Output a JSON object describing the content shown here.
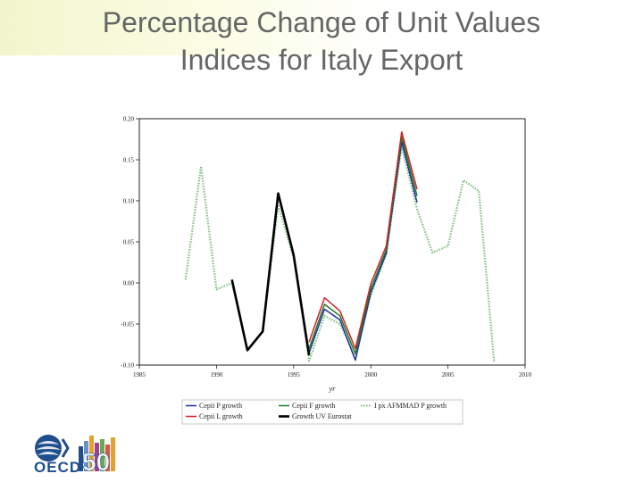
{
  "title": {
    "line1": "Percentage Change of Unit Values",
    "line2": "Indices for Italy Export"
  },
  "logo": {
    "text": "OECD",
    "anniversary": "50",
    "icon": "oecd-globe-icon",
    "colors": [
      "#1f4e8c",
      "#6b8fc7",
      "#e2a22b",
      "#9b3f8f",
      "#6aa84f",
      "#d9534f"
    ]
  },
  "chart_data": {
    "type": "line",
    "title": "",
    "xlabel": "yr",
    "ylabel": "",
    "xlim": [
      1985,
      2010
    ],
    "ylim": [
      -0.1,
      0.2
    ],
    "xticks": [
      1985,
      1990,
      1995,
      2000,
      2005,
      2010
    ],
    "yticks": [
      -0.1,
      -0.05,
      0.0,
      0.05,
      0.1,
      0.15,
      0.2
    ],
    "ytick_labels": [
      "-0.10",
      "-0.05",
      "0.00",
      "0.05",
      "0.10",
      "0.15",
      "0.20"
    ],
    "grid": false,
    "legend_position": "bottom",
    "series": [
      {
        "name": "Growth UV Eurostat",
        "color": "#000000",
        "style": "solid-thick",
        "x": [
          1991,
          1992,
          1993,
          1994,
          1995,
          1996
        ],
        "y": [
          0.004,
          -0.082,
          -0.059,
          0.109,
          0.034,
          -0.088
        ]
      },
      {
        "name": "I px AFMMAD P growth",
        "color": "#7fbf7f",
        "style": "dotted",
        "x": [
          1988,
          1989,
          1990,
          1991,
          1992,
          1993,
          1994,
          1995,
          1996,
          1997,
          1998,
          1999,
          2000,
          2001,
          2002,
          2003,
          2004,
          2005,
          2006,
          2007,
          2008
        ],
        "y": [
          0.004,
          0.142,
          -0.008,
          0.0,
          -0.082,
          -0.059,
          0.095,
          0.03,
          -0.095,
          -0.04,
          -0.05,
          -0.088,
          -0.015,
          0.035,
          0.165,
          0.09,
          0.037,
          0.045,
          0.125,
          0.112,
          -0.097
        ]
      },
      {
        "name": "Cepii P growth",
        "color": "#1f2f9a",
        "style": "solid",
        "x": [
          1996,
          1997,
          1998,
          1999,
          2000,
          2001,
          2002,
          2003
        ],
        "y": [
          -0.085,
          -0.032,
          -0.045,
          -0.094,
          -0.012,
          0.036,
          0.172,
          0.098
        ]
      },
      {
        "name": "Cepii F growth",
        "color": "#1a7a2a",
        "style": "solid",
        "x": [
          1996,
          1997,
          1998,
          1999,
          2000,
          2001,
          2002,
          2003
        ],
        "y": [
          -0.08,
          -0.026,
          -0.04,
          -0.086,
          -0.007,
          0.04,
          0.178,
          0.106
        ]
      },
      {
        "name": "Cepii L growth",
        "color": "#d42020",
        "style": "solid",
        "x": [
          1996,
          1997,
          1998,
          1999,
          2000,
          2001,
          2002,
          2003
        ],
        "y": [
          -0.072,
          -0.018,
          -0.034,
          -0.08,
          -0.001,
          0.045,
          0.184,
          0.114
        ]
      }
    ],
    "legend": [
      {
        "label": "Cepii P growth",
        "color": "#1f2f9a",
        "style": "solid"
      },
      {
        "label": "Cepii F growth",
        "color": "#1a7a2a",
        "style": "solid"
      },
      {
        "label": "I px AFMMAD P growth",
        "color": "#7fbf7f",
        "style": "dotted"
      },
      {
        "label": "Cepii L growth",
        "color": "#d42020",
        "style": "solid"
      },
      {
        "label": "Growth UV Eurostat",
        "color": "#000000",
        "style": "solid-thick"
      }
    ]
  }
}
